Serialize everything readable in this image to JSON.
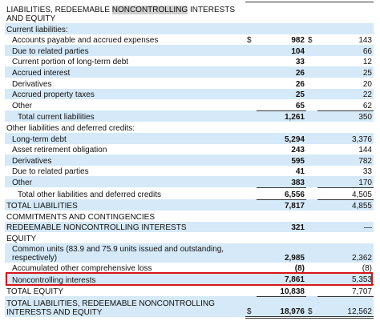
{
  "header": {
    "title_parts": [
      "LIABILITIES, REDEEMABLE",
      "NONCONTROLLING",
      "INTERESTS AND EQUITY"
    ]
  },
  "rows": [
    {
      "label": "Current liabilities:"
    },
    {
      "label": "Accounts payable and accrued expenses",
      "current_currency": "$",
      "current": "982",
      "prior_currency": "$",
      "prior": "143"
    },
    {
      "label": "Due to related parties",
      "current": "104",
      "prior": "66"
    },
    {
      "label": "Current portion of long-term debt",
      "current": "33",
      "prior": "12"
    },
    {
      "label": "Accrued interest",
      "current": "26",
      "prior": "25"
    },
    {
      "label": "Derivatives",
      "current": "26",
      "prior": "20"
    },
    {
      "label": "Accrued property taxes",
      "current": "25",
      "prior": "22"
    },
    {
      "label": "Other",
      "current": "65",
      "prior": "62"
    },
    {
      "label": "Total current liabilities",
      "current": "1,261",
      "prior": "350"
    },
    {
      "label": "Other liabilities and deferred credits:"
    },
    {
      "label": "Long-term debt",
      "current": "5,294",
      "prior": "3,376"
    },
    {
      "label": "Asset retirement obligation",
      "current": "243",
      "prior": "144"
    },
    {
      "label": "Derivatives",
      "current": "595",
      "prior": "782"
    },
    {
      "label": "Due to related parties",
      "current": "41",
      "prior": "33"
    },
    {
      "label": "Other",
      "current": "383",
      "prior": "170"
    },
    {
      "label": "Total other liabilities and deferred credits",
      "current": "6,556",
      "prior": "4,505"
    },
    {
      "label": "TOTAL LIABILITIES",
      "current": "7,817",
      "prior": "4,855"
    },
    {
      "label": "COMMITMENTS AND CONTINGENCIES"
    },
    {
      "label": "REDEEMABLE NONCONTROLLING INTERESTS",
      "current": "321",
      "prior": "—"
    },
    {
      "label": "EQUITY"
    },
    {
      "label": "Common units (83.9 and 75.9 units issued and outstanding, respectively)",
      "current": "2,985",
      "prior": "2,362"
    },
    {
      "label": "Accumulated other comprehensive loss",
      "current": "(8)",
      "prior": "(8)"
    },
    {
      "label": "Noncontrolling interests",
      "current": "7,861",
      "prior": "5,353"
    },
    {
      "label": "TOTAL EQUITY",
      "current": "10,838",
      "prior": "7,707"
    },
    {
      "label": "TOTAL LIABILITIES, REDEEMABLE NONCONTROLLING INTERESTS AND EQUITY",
      "current_currency": "$",
      "current": "18,976",
      "prior_currency": "$",
      "prior": "12,562"
    }
  ]
}
